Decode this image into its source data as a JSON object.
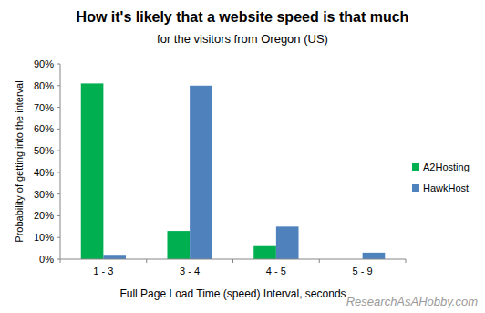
{
  "chart_data": {
    "type": "bar",
    "title": "How it's likely that a website speed is that much",
    "subtitle": "for the visitors from Oregon (US)",
    "x_label": "Full Page Load Time (speed)  Interval, seconds",
    "y_label": "Probability of getting into the interval",
    "annotations": [
      "ResearchAsAHobby.com"
    ],
    "categories": [
      "1 - 3",
      "3 - 4",
      "4 - 5",
      "5 - 9"
    ],
    "series": [
      {
        "name": "A2Hosting",
        "color": "#00b050",
        "values": [
          81,
          13,
          6,
          0
        ]
      },
      {
        "name": "HawkHost",
        "color": "#4f81bd",
        "values": [
          2,
          80,
          15,
          3
        ]
      }
    ],
    "ylim": [
      0,
      90
    ],
    "yticks": [
      {
        "value": 0,
        "label": "0%"
      },
      {
        "value": 10,
        "label": "10%"
      },
      {
        "value": 20,
        "label": "20%"
      },
      {
        "value": 30,
        "label": "30%"
      },
      {
        "value": 40,
        "label": "40%"
      },
      {
        "value": 50,
        "label": "50%"
      },
      {
        "value": 60,
        "label": "60%"
      },
      {
        "value": 70,
        "label": "70%"
      },
      {
        "value": 80,
        "label": "80%"
      },
      {
        "value": 90,
        "label": "90%"
      }
    ],
    "grid": false,
    "legend": "right"
  }
}
